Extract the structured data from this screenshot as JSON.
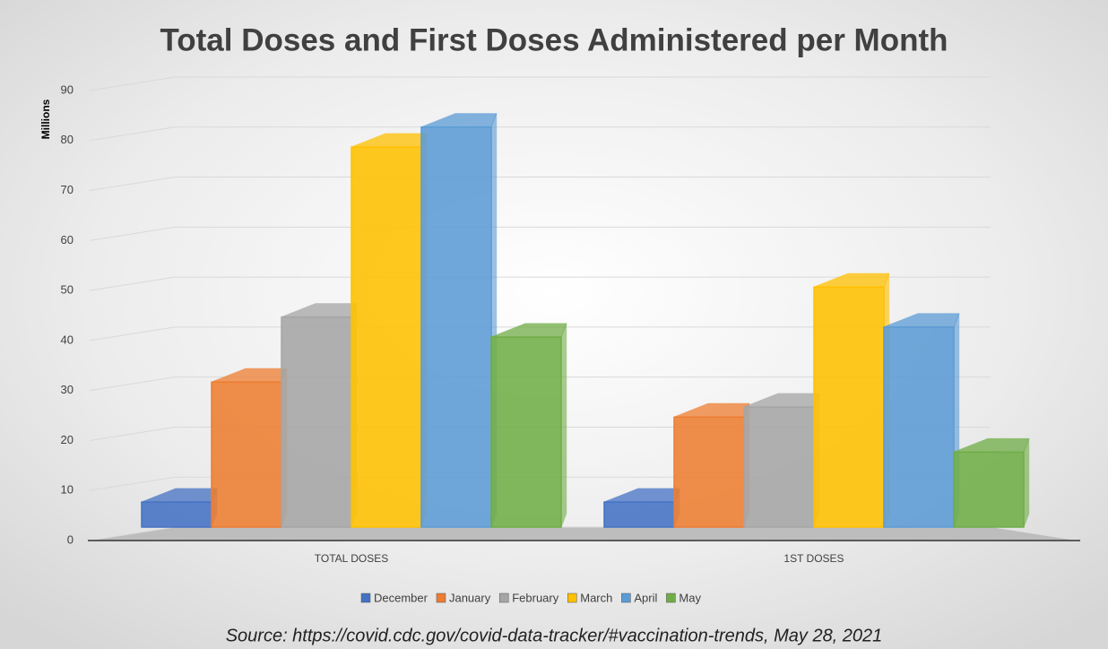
{
  "chart_data": {
    "type": "bar3d",
    "title": "Total Doses and First Doses Administered per Month",
    "y_label": "Millions",
    "source": "Source: https://covid.cdc.gov/covid-data-tracker/#vaccination-trends, May 28, 2021",
    "categories": [
      "TOTAL DOSES",
      "1ST DOSES"
    ],
    "series": [
      {
        "name": "December",
        "color": "#4472c4",
        "values": [
          5,
          5
        ]
      },
      {
        "name": "January",
        "color": "#ed7d31",
        "values": [
          29,
          22
        ]
      },
      {
        "name": "February",
        "color": "#a5a5a5",
        "values": [
          42,
          24
        ]
      },
      {
        "name": "March",
        "color": "#ffc000",
        "values": [
          76,
          48
        ]
      },
      {
        "name": "April",
        "color": "#5b9bd5",
        "values": [
          80,
          40
        ]
      },
      {
        "name": "May",
        "color": "#70ad47",
        "values": [
          38,
          15
        ]
      }
    ],
    "ylim": [
      0,
      90
    ],
    "yticks": [
      0,
      10,
      20,
      30,
      40,
      50,
      60,
      70,
      80,
      90
    ],
    "grid": true,
    "legend": "bottom"
  }
}
